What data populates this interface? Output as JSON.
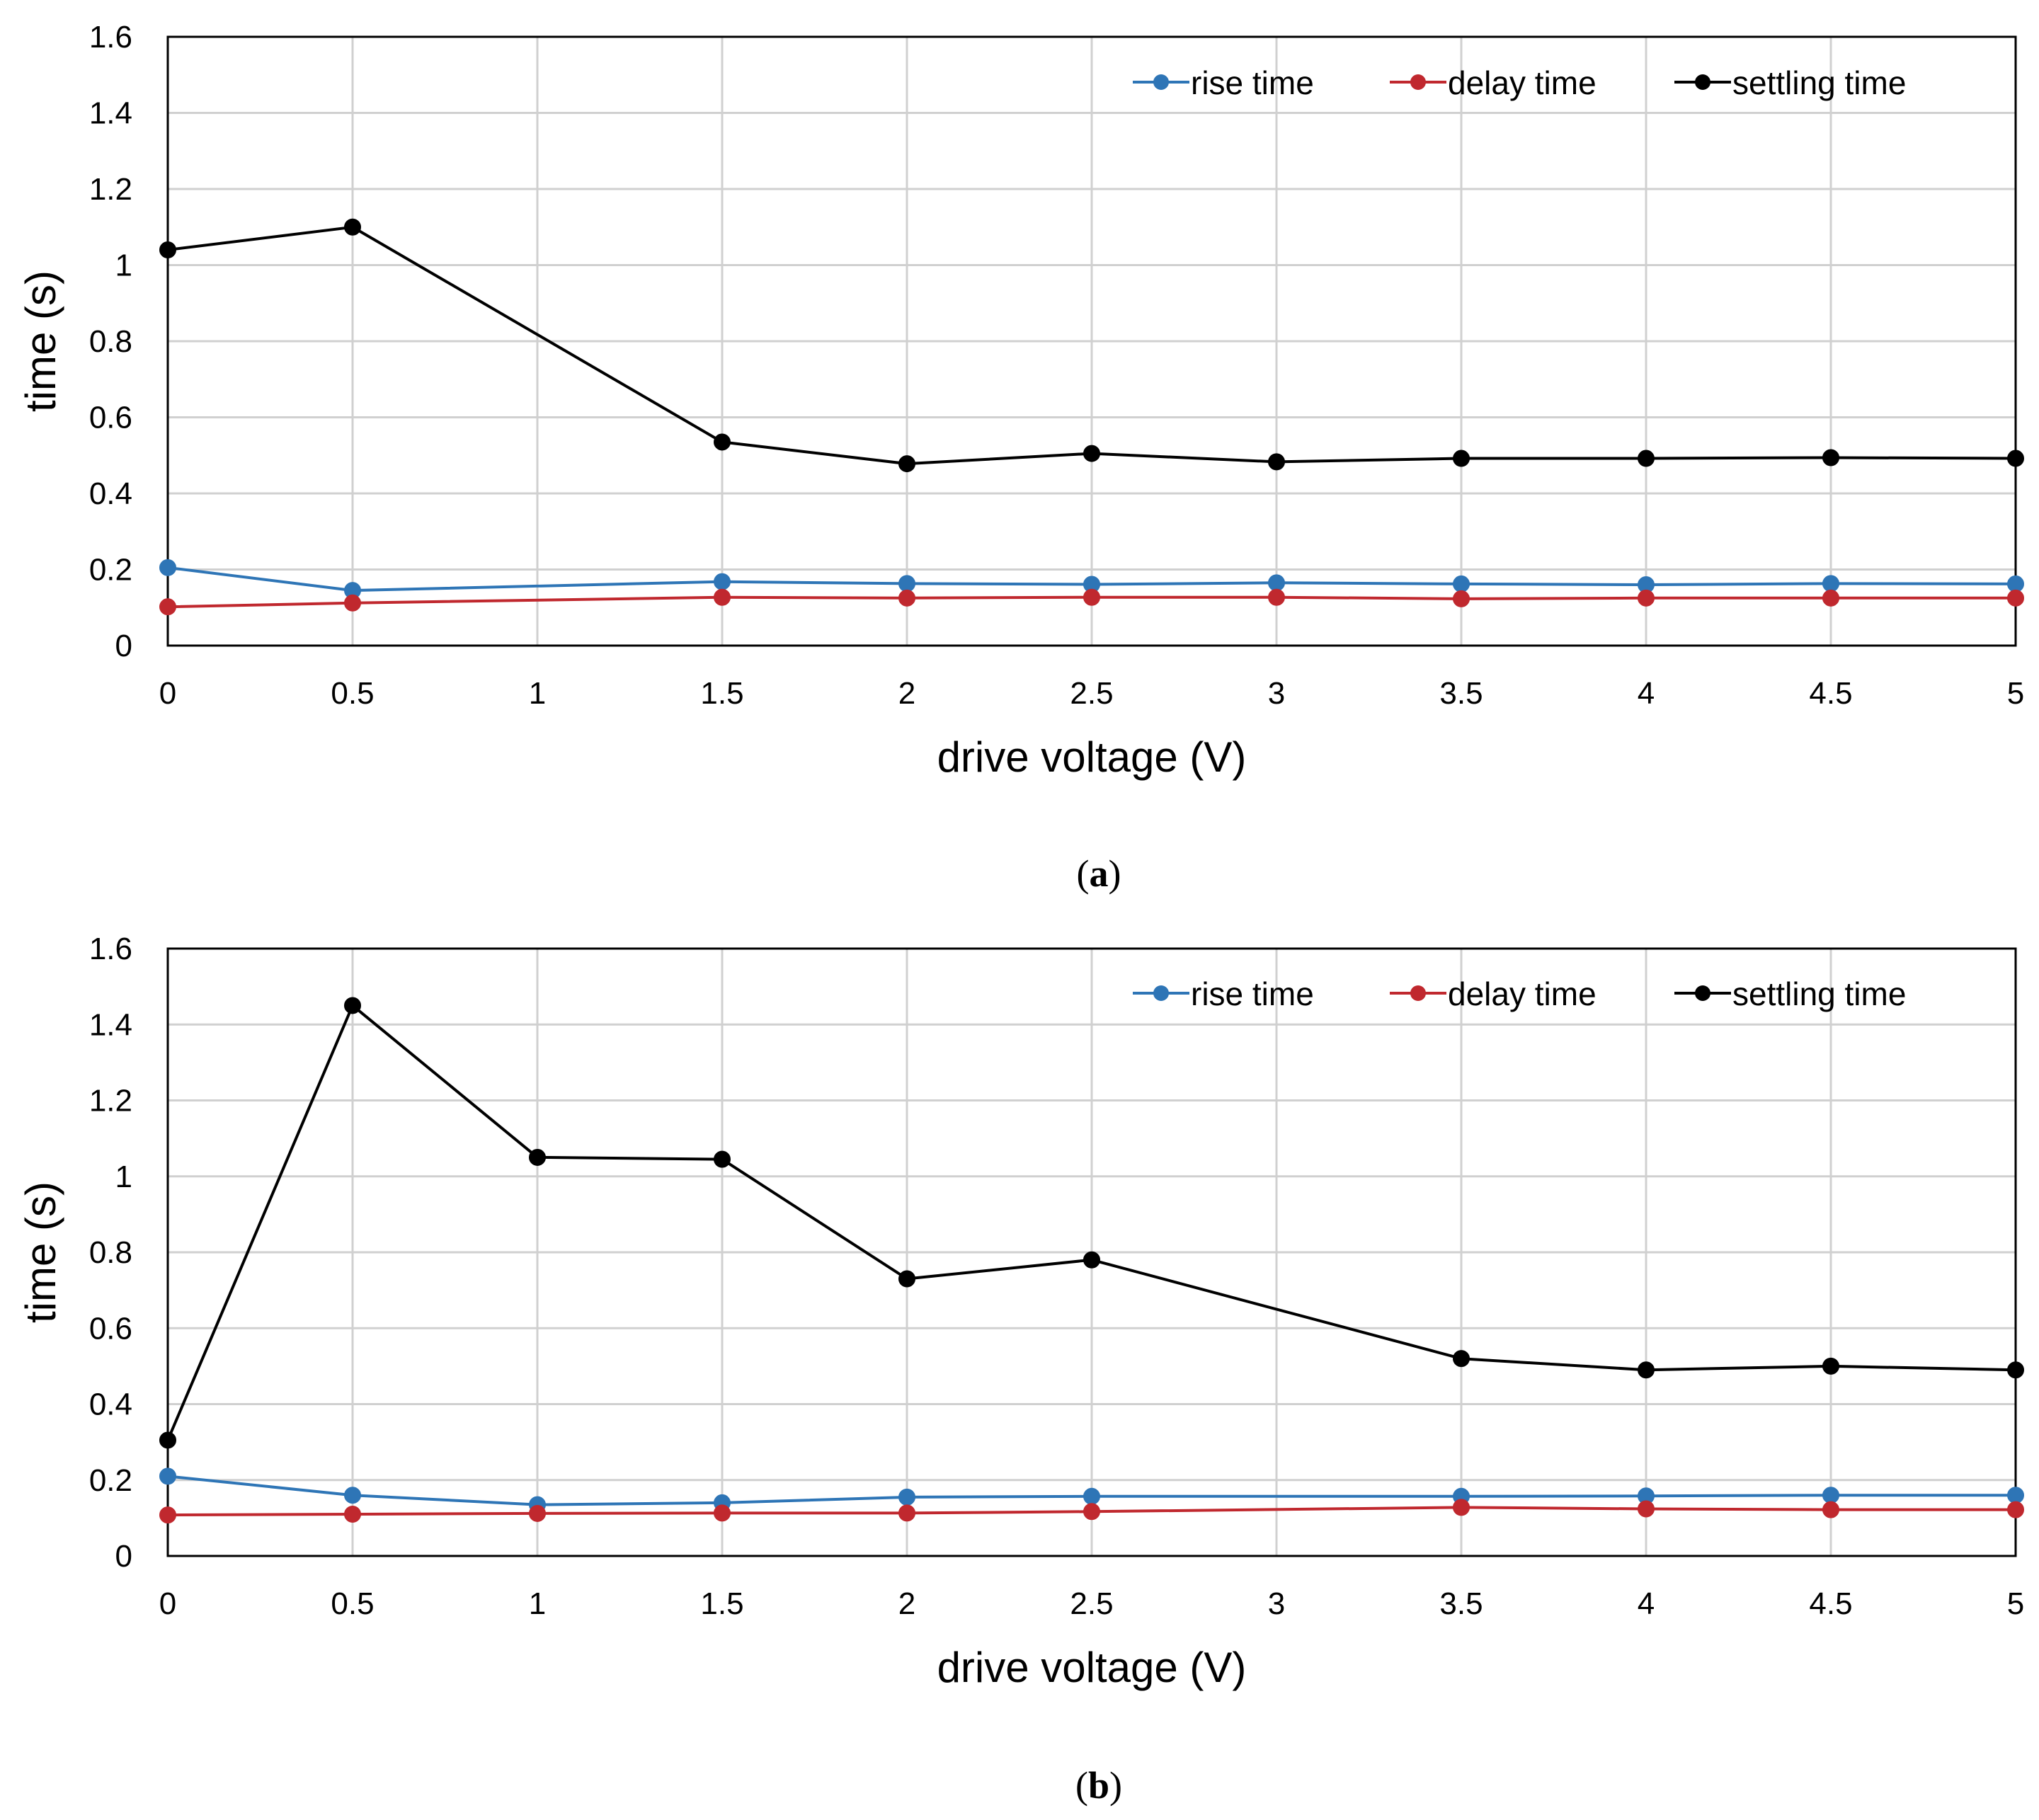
{
  "chart_data": [
    {
      "type": "line",
      "caption_open": "(",
      "caption_letter": "a",
      "caption_close": ")",
      "xlabel": "drive voltage (V)",
      "ylabel": "time (s)",
      "xlim": [
        0,
        5
      ],
      "ylim": [
        0,
        1.6
      ],
      "xticks": [
        "0",
        "0.5",
        "1",
        "1.5",
        "2",
        "2.5",
        "3",
        "3.5",
        "4",
        "4.5",
        "5"
      ],
      "yticks": [
        "0",
        "0.2",
        "0.4",
        "0.6",
        "0.8",
        "1",
        "1.2",
        "1.4",
        "1.6"
      ],
      "grid": true,
      "legend_position": "top-right",
      "series": [
        {
          "name": "rise time",
          "color": "#2e75b6",
          "x": [
            0,
            0.5,
            1.5,
            2,
            2.5,
            3,
            3.5,
            4,
            4.5,
            5
          ],
          "values": [
            0.205,
            0.145,
            0.168,
            0.163,
            0.161,
            0.165,
            0.162,
            0.16,
            0.163,
            0.162
          ]
        },
        {
          "name": "delay time",
          "color": "#c0282e",
          "x": [
            0,
            0.5,
            1.5,
            2,
            2.5,
            3,
            3.5,
            4,
            4.5,
            5
          ],
          "values": [
            0.102,
            0.112,
            0.127,
            0.125,
            0.127,
            0.127,
            0.123,
            0.125,
            0.125,
            0.125
          ]
        },
        {
          "name": "settling time",
          "color": "#000000",
          "x": [
            0,
            0.5,
            1.5,
            2,
            2.5,
            3,
            3.5,
            4,
            4.5,
            5
          ],
          "values": [
            1.04,
            1.1,
            0.535,
            0.478,
            0.505,
            0.483,
            0.492,
            0.492,
            0.494,
            0.492
          ]
        }
      ]
    },
    {
      "type": "line",
      "caption_open": "(",
      "caption_letter": "b",
      "caption_close": ")",
      "xlabel": "drive voltage (V)",
      "ylabel": "time (s)",
      "xlim": [
        0,
        5
      ],
      "ylim": [
        0,
        1.6
      ],
      "xticks": [
        "0",
        "0.5",
        "1",
        "1.5",
        "2",
        "2.5",
        "3",
        "3.5",
        "4",
        "4.5",
        "5"
      ],
      "yticks": [
        "0",
        "0.2",
        "0.4",
        "0.6",
        "0.8",
        "1",
        "1.2",
        "1.4",
        "1.6"
      ],
      "grid": true,
      "legend_position": "top-right",
      "series": [
        {
          "name": "rise time",
          "color": "#2e75b6",
          "x": [
            0,
            0.5,
            1,
            1.5,
            2,
            2.5,
            3.5,
            4,
            4.5,
            5
          ],
          "values": [
            0.21,
            0.16,
            0.135,
            0.14,
            0.155,
            0.157,
            0.157,
            0.158,
            0.16,
            0.16
          ]
        },
        {
          "name": "delay time",
          "color": "#c0282e",
          "x": [
            0,
            0.5,
            1,
            1.5,
            2,
            2.5,
            3.5,
            4,
            4.5,
            5
          ],
          "values": [
            0.108,
            0.11,
            0.112,
            0.113,
            0.113,
            0.117,
            0.128,
            0.124,
            0.122,
            0.122
          ]
        },
        {
          "name": "settling time",
          "color": "#000000",
          "x": [
            0,
            0.5,
            1,
            1.5,
            2,
            2.5,
            3.5,
            4,
            4.5,
            5
          ],
          "values": [
            0.305,
            1.45,
            1.05,
            1.045,
            0.73,
            0.78,
            0.52,
            0.49,
            0.5,
            0.49
          ]
        }
      ]
    }
  ]
}
